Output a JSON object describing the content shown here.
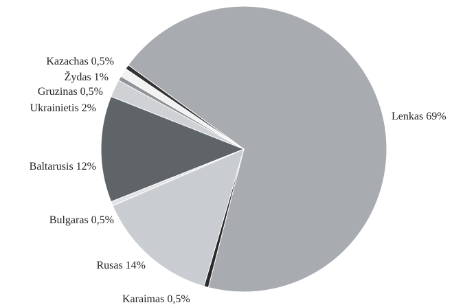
{
  "chart_data": {
    "type": "pie",
    "categories": [
      "Lenkas",
      "Karaimas",
      "Rusas",
      "Bulgaras",
      "Baltarusis",
      "Ukrainietis",
      "Gruzinas",
      "Žydas",
      "Kazachas"
    ],
    "values": [
      69,
      0.5,
      14,
      0.5,
      12,
      2,
      0.5,
      1,
      0.5
    ],
    "value_labels": [
      "69%",
      "0,5%",
      "14%",
      "0,5%",
      "12%",
      "2%",
      "0,5%",
      "1%",
      "0,5%"
    ],
    "colors": [
      "#a8abb0",
      "#2a2a2a",
      "#c9ccd1",
      "#e2e3e5",
      "#5e6467",
      "#cfd1d4",
      "#8f9397",
      "#f2f2f2",
      "#333333"
    ]
  }
}
